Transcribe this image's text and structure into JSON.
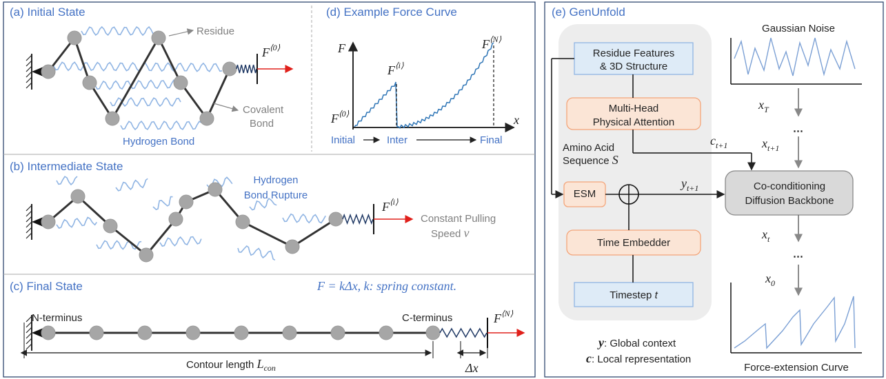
{
  "panel_a": {
    "title": "(a) Initial State",
    "residue_label": "Residue",
    "covalent_bond_label": [
      "Covalent",
      "Bond"
    ],
    "hydrogen_bond_label": "Hydrogen Bond",
    "force": {
      "base": "F",
      "sup": "⟨0⟩"
    }
  },
  "panel_b": {
    "title": "(b) Intermediate State",
    "rupture_label": [
      "Hydrogen",
      "Bond Rupture"
    ],
    "pulling_label": [
      "Constant Pulling",
      "Speed"
    ],
    "speed_symbol": "v",
    "force": {
      "base": "F",
      "sup": "⟨i⟩"
    }
  },
  "panel_c": {
    "title": "(c) Final State",
    "formula": "F = kΔx, k: spring constant.",
    "n_terminus": "N-terminus",
    "c_terminus": "C-terminus",
    "contour_label": "Contour length",
    "contour_symbol": {
      "base": "L",
      "sub": "con"
    },
    "extension_label": "Δx",
    "force": {
      "base": "F",
      "sup": "⟨N⟩"
    }
  },
  "panel_d": {
    "title": "(d) Example Force Curve",
    "y_axis": "F",
    "x_axis": "x",
    "forces": [
      {
        "base": "F",
        "sup": "⟨0⟩"
      },
      {
        "base": "F",
        "sup": "⟨i⟩"
      },
      {
        "base": "F",
        "sup": "⟨N⟩"
      }
    ],
    "stages": [
      "Initial",
      "Inter",
      "Final"
    ]
  },
  "panel_e": {
    "title": "(e) GenUnfold",
    "residue_features": [
      "Residue Features",
      "& 3D Structure"
    ],
    "attention": [
      "Multi-Head",
      "Physical Attention"
    ],
    "sequence_label": [
      "Amino Acid",
      "Sequence"
    ],
    "sequence_symbol": "S",
    "esm": "ESM",
    "time_embedder": "Time Embedder",
    "timestep_label": "Timestep",
    "timestep_symbol": "t",
    "backbone": [
      "Co-conditioning",
      "Diffusion Backbone"
    ],
    "noise_label": "Gaussian Noise",
    "curve_label": "Force-extension Curve",
    "x_T": {
      "base": "x",
      "sub": "T"
    },
    "x_t1": {
      "base": "x",
      "sub": "t+1"
    },
    "x_t": {
      "base": "x",
      "sub": "t"
    },
    "x_0": {
      "base": "x",
      "sub": "0"
    },
    "ellipsis": [
      "⋯",
      "⋯"
    ],
    "y_t1": {
      "base": "y",
      "sub": "t+1"
    },
    "c_t1": {
      "base": "c",
      "sub": "t+1"
    },
    "legend": [
      {
        "symbol": "y",
        "text": ": Global context"
      },
      {
        "symbol": "c",
        "text": ": Local representation"
      }
    ]
  }
}
